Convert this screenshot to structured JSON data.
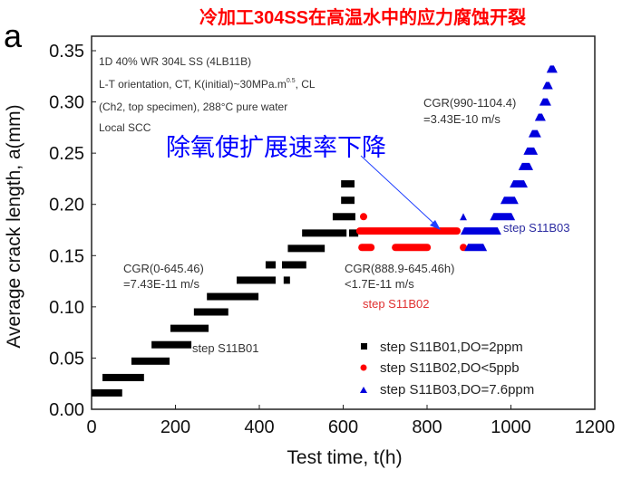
{
  "header": {
    "title_cn": "冷加工304SS在高温水中的应力腐蚀开裂",
    "panel_label": "a",
    "annotation_cn": "除氧使扩展速率下降"
  },
  "colors": {
    "title": "#ff0000",
    "annotation": "#0000ff",
    "s1": "#000000",
    "s2": "#ff0000",
    "s3": "#0000dd"
  },
  "chart_data": {
    "type": "scatter",
    "xlabel": "Test time, t(h)",
    "ylabel": "Average crack length, a(mm)",
    "xlim": [
      0,
      1200
    ],
    "ylim": [
      0,
      0.35
    ],
    "xticks": [
      "0",
      "200",
      "400",
      "600",
      "800",
      "1000",
      "1200"
    ],
    "yticks": [
      "0.00",
      "0.05",
      "0.10",
      "0.15",
      "0.20",
      "0.25",
      "0.30",
      "0.35"
    ],
    "grid": false,
    "legend_position": "bottom-right",
    "info_box": [
      "1D 40% WR 304L SS (4LB11B)",
      "L-T orientation, CT, K(initial)~30MPa.m",
      "(Ch2, top specimen), 288°C pure water",
      "Local SCC"
    ],
    "info_box_sup": "0.5",
    "info_box_line2_end": ", CL",
    "annotations": {
      "cgr1_line1": "CGR(0-645.46)",
      "cgr1_line2": "=7.43E-11 m/s",
      "cgr2_line1": "CGR(888.9-645.46h)",
      "cgr2_line2": "<1.7E-11 m/s",
      "cgr3_line1": "CGR(990-1104.4)",
      "cgr3_line2": "=3.43E-10 m/s",
      "step1": "step S11B01",
      "step2": "step S11B02",
      "step3": "step S11B03"
    },
    "series": [
      {
        "name": "step S11B01,DO=2ppm",
        "marker": "square",
        "color": "#000000",
        "segments": [
          [
            0,
            73,
            0.016
          ],
          [
            26,
            125,
            0.031
          ],
          [
            95,
            186,
            0.047
          ],
          [
            143,
            238,
            0.063
          ],
          [
            188,
            279,
            0.079
          ],
          [
            244,
            326,
            0.095
          ],
          [
            275,
            398,
            0.11
          ],
          [
            346,
            439,
            0.126
          ],
          [
            415,
            439,
            0.141
          ],
          [
            458,
            473,
            0.126
          ],
          [
            454,
            512,
            0.141
          ],
          [
            468,
            556,
            0.157
          ],
          [
            502,
            608,
            0.172
          ],
          [
            614,
            636,
            0.172
          ],
          [
            575,
            629,
            0.188
          ],
          [
            595,
            627,
            0.204
          ],
          [
            595,
            627,
            0.22
          ]
        ]
      },
      {
        "name": "step S11B02,DO<5ppb",
        "marker": "circle",
        "color": "#ff0000",
        "segments": [
          [
            640,
            657,
            0.188
          ],
          [
            631,
            880,
            0.174
          ],
          [
            636,
            675,
            0.158
          ],
          [
            716,
            809,
            0.158
          ],
          [
            878,
            889,
            0.158
          ]
        ]
      },
      {
        "name": "step S11B03,DO=7.6ppm",
        "marker": "triangle",
        "color": "#0000dd",
        "segments": [
          [
            878,
            895,
            0.188
          ],
          [
            880,
            977,
            0.174
          ],
          [
            889,
            943,
            0.158
          ],
          [
            950,
            1010,
            0.188
          ],
          [
            975,
            1018,
            0.204
          ],
          [
            997,
            1040,
            0.22
          ],
          [
            1018,
            1053,
            0.237
          ],
          [
            1030,
            1064,
            0.252
          ],
          [
            1042,
            1072,
            0.269
          ],
          [
            1057,
            1083,
            0.285
          ],
          [
            1068,
            1096,
            0.3
          ],
          [
            1075,
            1100,
            0.316
          ],
          [
            1085,
            1111,
            0.332
          ]
        ]
      }
    ]
  }
}
